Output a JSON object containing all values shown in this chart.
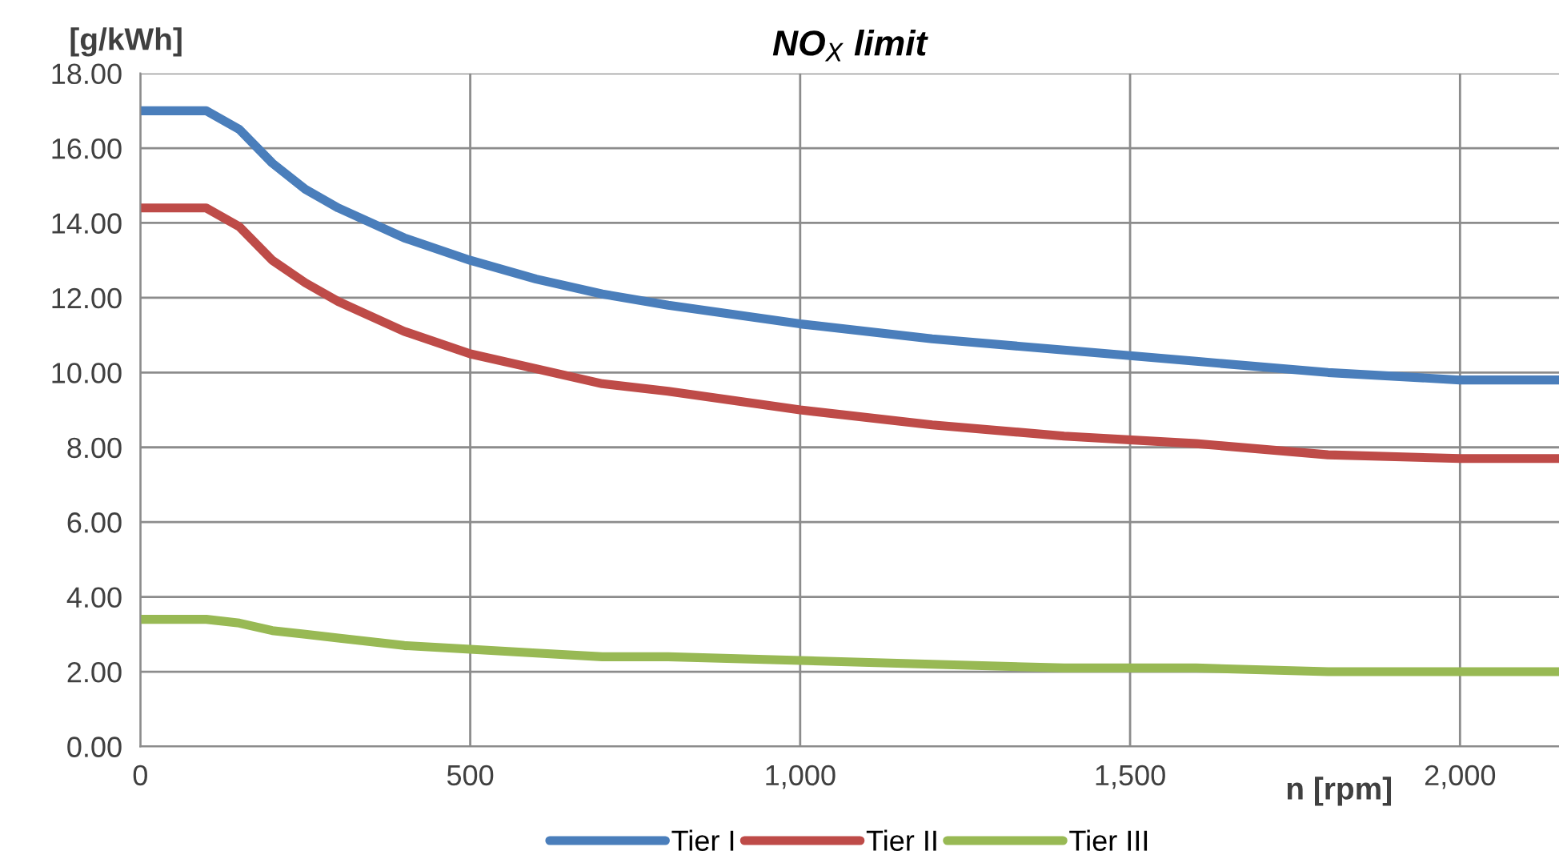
{
  "chart_data": {
    "type": "line",
    "title": "NO$_{X}$ limit",
    "xlabel": "n [rpm]",
    "ylabel": "[g/kWh]",
    "x": [
      0,
      100,
      150,
      200,
      250,
      300,
      400,
      500,
      600,
      700,
      800,
      1000,
      1200,
      1400,
      1600,
      1800,
      2000,
      2150
    ],
    "series": [
      {
        "name": "Tier I",
        "color": "#4a7ebb",
        "values": [
          17.0,
          17.0,
          16.5,
          15.6,
          14.9,
          14.4,
          13.6,
          13.0,
          12.5,
          12.1,
          11.8,
          11.3,
          10.9,
          10.6,
          10.3,
          10.0,
          9.8,
          9.8
        ]
      },
      {
        "name": "Tier II",
        "color": "#be4b48",
        "values": [
          14.4,
          14.4,
          13.9,
          13.0,
          12.4,
          11.9,
          11.1,
          10.5,
          10.1,
          9.7,
          9.5,
          9.0,
          8.6,
          8.3,
          8.1,
          7.8,
          7.7,
          7.7
        ]
      },
      {
        "name": "Tier III",
        "color": "#98b954",
        "values": [
          3.4,
          3.4,
          3.3,
          3.1,
          3.0,
          2.9,
          2.7,
          2.6,
          2.5,
          2.4,
          2.4,
          2.3,
          2.2,
          2.1,
          2.1,
          2.0,
          2.0,
          2.0
        ]
      }
    ],
    "xlim": [
      0,
      2150
    ],
    "ylim": [
      0,
      18
    ],
    "xticks": [
      0,
      500,
      {
        "value": 1000,
        "label": "1,000"
      },
      {
        "value": 1500,
        "label": "1,500"
      },
      {
        "value": 2000,
        "label": "2,000"
      }
    ],
    "yticks": [
      {
        "value": 0,
        "label": "0.00"
      },
      {
        "value": 2,
        "label": "2.00"
      },
      {
        "value": 4,
        "label": "4.00"
      },
      {
        "value": 6,
        "label": "6.00"
      },
      {
        "value": 8,
        "label": "8.00"
      },
      {
        "value": 10,
        "label": "10.00"
      },
      {
        "value": 12,
        "label": "12.00"
      },
      {
        "value": 14,
        "label": "14.00"
      },
      {
        "value": 16,
        "label": "16.00"
      },
      {
        "value": 18,
        "label": "18.00"
      }
    ],
    "grid": true,
    "legend": "bottom",
    "marker": "none",
    "line_style": "solid"
  }
}
